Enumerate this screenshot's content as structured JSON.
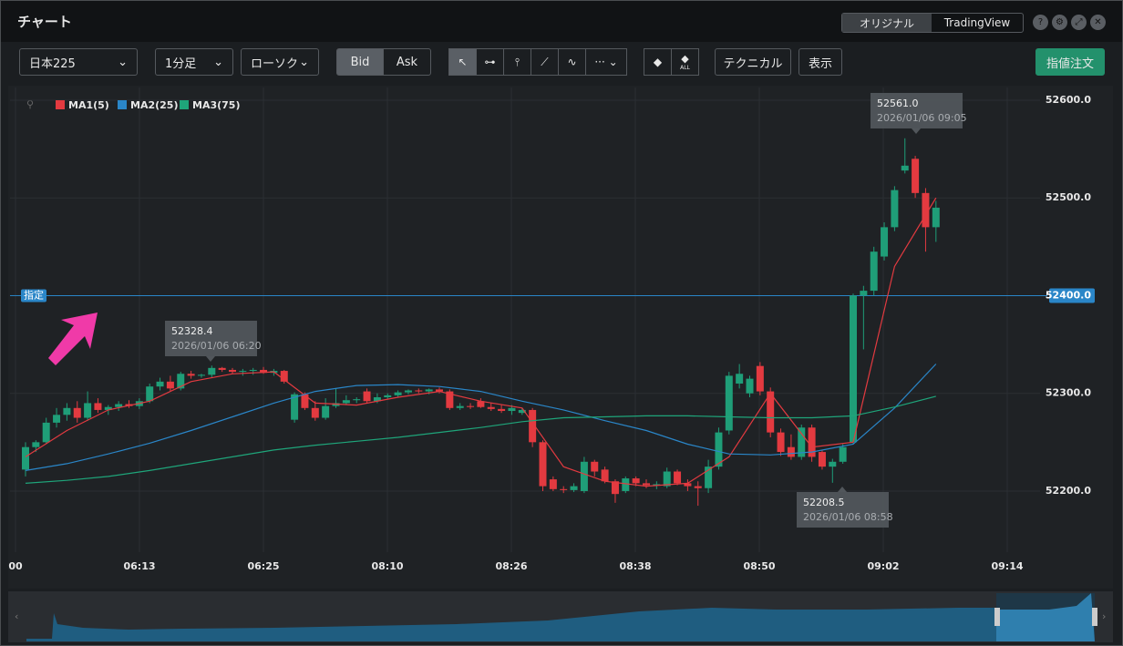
{
  "window": {
    "title": "チャート",
    "view_tabs": [
      "オリジナル",
      "TradingView"
    ],
    "help": "?"
  },
  "toolbar": {
    "symbol": "日本225",
    "interval": "1分足",
    "chart_style": "ローソク",
    "price_tabs": [
      "Bid",
      "Ask"
    ],
    "eraser_all": "ALL",
    "technical": "テクニカル",
    "display": "表示",
    "order_button": "指値注文"
  },
  "chart": {
    "type": "candlestick",
    "up_color": "#1f9e78",
    "down_color": "#e33a40",
    "ylim": [
      52137.5,
      52613
    ],
    "yticks": [
      {
        "value": 52600,
        "label": "52600.0"
      },
      {
        "value": 52500,
        "label": "52500.0"
      },
      {
        "value": 52400,
        "label": "52400.0"
      },
      {
        "value": 52300,
        "label": "52300.0"
      },
      {
        "value": 52200,
        "label": "52200.0"
      }
    ],
    "xtick_labels": [
      "00",
      "06:13",
      "06:25",
      "08:10",
      "08:26",
      "08:38",
      "08:50",
      "09:02",
      "09:14"
    ],
    "grid": true,
    "candles": [
      [
        52222,
        52250,
        52215,
        52245
      ],
      [
        52245,
        52252,
        52240,
        52250
      ],
      [
        52250,
        52275,
        52248,
        52270
      ],
      [
        52270,
        52285,
        52265,
        52278
      ],
      [
        52278,
        52290,
        52272,
        52285
      ],
      [
        52285,
        52292,
        52270,
        52275
      ],
      [
        52275,
        52302,
        52272,
        52290
      ],
      [
        52290,
        52295,
        52280,
        52283
      ],
      [
        52283,
        52288,
        52278,
        52286
      ],
      [
        52286,
        52292,
        52282,
        52289
      ],
      [
        52289,
        52293,
        52285,
        52287
      ],
      [
        52287,
        52295,
        52284,
        52292
      ],
      [
        52292,
        52310,
        52290,
        52307
      ],
      [
        52307,
        52316,
        52303,
        52312
      ],
      [
        52312,
        52318,
        52302,
        52305
      ],
      [
        52305,
        52322,
        52303,
        52320
      ],
      [
        52320,
        52323,
        52315,
        52318
      ],
      [
        52318,
        52320,
        52316,
        52319
      ],
      [
        52319,
        52328.4,
        52316,
        52326
      ],
      [
        52326,
        52327,
        52322,
        52324
      ],
      [
        52324,
        52326,
        52320,
        52322
      ],
      [
        52322,
        52325,
        52318,
        52323
      ],
      [
        52323,
        52326,
        52319,
        52324
      ],
      [
        52324,
        52327,
        52320,
        52321
      ],
      [
        52321,
        52325,
        52318,
        52323
      ],
      [
        52323,
        52324,
        52310,
        52312
      ],
      [
        52273,
        52301,
        52270,
        52299
      ],
      [
        52299,
        52301,
        52283,
        52285
      ],
      [
        52285,
        52292,
        52272,
        52275
      ],
      [
        52275,
        52295,
        52273,
        52287
      ],
      [
        52287,
        52305,
        52285,
        52290
      ],
      [
        52290,
        52298,
        52288,
        52293
      ],
      [
        52293,
        52296,
        52290,
        52294
      ],
      [
        52302,
        52305,
        52290,
        52292
      ],
      [
        52292,
        52300,
        52290,
        52296
      ],
      [
        52296,
        52300,
        52294,
        52298
      ],
      [
        52298,
        52303,
        52296,
        52301
      ],
      [
        52301,
        52304,
        52299,
        52303
      ],
      [
        52303,
        52305,
        52300,
        52302
      ],
      [
        52302,
        52305,
        52299,
        52304
      ],
      [
        52304,
        52306,
        52300,
        52302
      ],
      [
        52302,
        52304,
        52283,
        52285
      ],
      [
        52285,
        52290,
        52283,
        52287
      ],
      [
        52287,
        52290,
        52284,
        52286
      ],
      [
        52292,
        52295,
        52285,
        52286
      ],
      [
        52286,
        52290,
        52282,
        52284
      ],
      [
        52284,
        52288,
        52280,
        52282
      ],
      [
        52282,
        52288,
        52278,
        52285
      ],
      [
        52280,
        52285,
        52278,
        52283
      ],
      [
        52283,
        52285,
        52245,
        52250
      ],
      [
        52250,
        52252,
        52200,
        52205
      ],
      [
        52212,
        52215,
        52200,
        52202
      ],
      [
        52202,
        52205,
        52198,
        52201
      ],
      [
        52201,
        52208,
        52199,
        52205
      ],
      [
        52200,
        52235,
        52198,
        52230
      ],
      [
        52230,
        52232,
        52215,
        52220
      ],
      [
        52222,
        52225,
        52208,
        52210
      ],
      [
        52210,
        52212,
        52188,
        52197
      ],
      [
        52200,
        52215,
        52198,
        52213
      ],
      [
        52213,
        52215,
        52205,
        52208
      ],
      [
        52208,
        52212,
        52203,
        52206
      ],
      [
        52206,
        52210,
        52202,
        52207
      ],
      [
        52205,
        52224,
        52203,
        52220
      ],
      [
        52220,
        52222,
        52206,
        52208
      ],
      [
        52208,
        52212,
        52200,
        52205
      ],
      [
        52205,
        52210,
        52185,
        52203
      ],
      [
        52203,
        52232,
        52198,
        52225
      ],
      [
        52225,
        52265,
        52222,
        52260
      ],
      [
        52262,
        52322,
        52258,
        52318
      ],
      [
        52310,
        52330,
        52305,
        52320
      ],
      [
        52300,
        52318,
        52296,
        52315
      ],
      [
        52328,
        52332,
        52298,
        52302
      ],
      [
        52302,
        52306,
        52255,
        52260
      ],
      [
        52260,
        52264,
        52236,
        52240
      ],
      [
        52245,
        52258,
        52232,
        52235
      ],
      [
        52235,
        52268,
        52232,
        52265
      ],
      [
        52265,
        52268,
        52230,
        52235
      ],
      [
        52240,
        52242,
        52222,
        52225
      ],
      [
        52225,
        52233,
        52208.5,
        52230
      ],
      [
        52230,
        52248,
        52228,
        52245
      ],
      [
        52250,
        52402,
        52248,
        52400
      ],
      [
        52400,
        52410,
        52345,
        52405
      ],
      [
        52405,
        52450,
        52400,
        52445
      ],
      [
        52440,
        52475,
        52436,
        52470
      ],
      [
        52470,
        52512,
        52466,
        52508
      ],
      [
        52528,
        52561,
        52525,
        52533
      ],
      [
        52540,
        52543,
        52500,
        52505
      ],
      [
        52505,
        52510,
        52445,
        52470
      ],
      [
        52470,
        52497,
        52455,
        52490
      ]
    ],
    "ma_x": [
      0,
      4,
      8,
      12,
      16,
      20,
      24,
      28,
      32,
      36,
      40,
      44,
      48,
      52,
      56,
      60,
      64,
      68,
      72,
      76,
      80,
      84,
      88
    ],
    "series": [
      {
        "name": "MA1(5)",
        "color": "#e33a40",
        "values": [
          52235,
          52262,
          52283,
          52292,
          52312,
          52320,
          52322,
          52290,
          52288,
          52296,
          52302,
          52292,
          52285,
          52225,
          52210,
          52205,
          52208,
          52235,
          52300,
          52245,
          52250,
          52430,
          52500
        ]
      },
      {
        "name": "MA2(25)",
        "color": "#2a86c8",
        "values": [
          52221,
          52228,
          52238,
          52249,
          52262,
          52276,
          52290,
          52302,
          52308,
          52309,
          52307,
          52302,
          52292,
          52283,
          52272,
          52262,
          52248,
          52238,
          52237,
          52240,
          52248,
          52285,
          52330
        ]
      },
      {
        "name": "MA3(75)",
        "color": "#1fa57a",
        "values": [
          52208,
          52211,
          52215,
          52221,
          52228,
          52235,
          52242,
          52247,
          52251,
          52255,
          52260,
          52265,
          52271,
          52275,
          52276,
          52277,
          52277,
          52276,
          52275,
          52275,
          52277,
          52286,
          52297
        ]
      }
    ],
    "order_line": {
      "value": 52400,
      "label": "52400.0",
      "tag": "指定",
      "color": "#2a86c8"
    },
    "tooltips": [
      {
        "price": "52328.4",
        "time": "2026/01/06 06:20"
      },
      {
        "price": "52561.0",
        "time": "2026/01/06 09:05"
      },
      {
        "price": "52208.5",
        "time": "2026/01/06 08:58"
      }
    ]
  }
}
